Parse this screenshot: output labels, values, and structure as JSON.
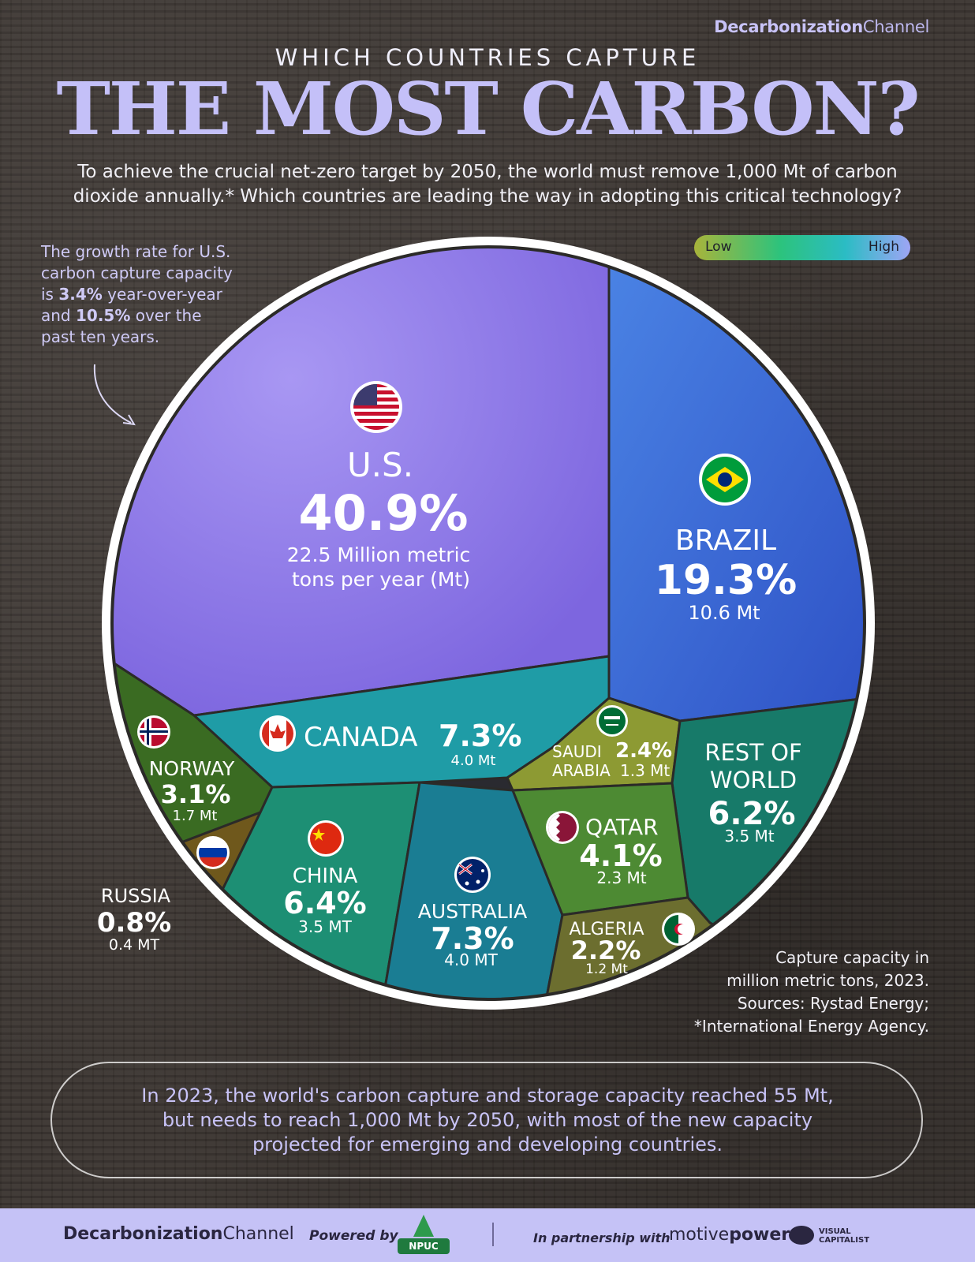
{
  "header": {
    "brand_bold": "Decarbonization",
    "brand_light": "Channel",
    "kicker": "WHICH COUNTRIES CAPTURE",
    "title": "THE MOST CARBON?",
    "intro_line1": "To achieve the crucial net-zero target by 2050, the world must remove 1,000 Mt of carbon",
    "intro_line2": "dioxide annually.* Which countries are leading the way in adopting this critical technology?"
  },
  "note": {
    "line1": "The growth rate for U.S.",
    "line2": "carbon capture capacity",
    "line3_pre": "is ",
    "line3_val": "3.4%",
    "line3_post": " year-over-year",
    "line4_pre": "and ",
    "line4_val": "10.5%",
    "line4_post": " over the",
    "line5": "past ten years."
  },
  "legend": {
    "low": "Low",
    "high": "High"
  },
  "chart_data": {
    "type": "pie",
    "subtype": "voronoi treemap",
    "unit": "Mt",
    "categories": [
      "U.S.",
      "Brazil",
      "Canada",
      "Australia",
      "China",
      "Rest of World",
      "Qatar",
      "Norway",
      "Saudi Arabia",
      "Algeria",
      "Russia"
    ],
    "percent": [
      40.9,
      19.3,
      7.3,
      7.3,
      6.4,
      6.2,
      4.1,
      3.1,
      2.4,
      2.2,
      0.8
    ],
    "values": [
      22.5,
      10.6,
      4.0,
      4.0,
      3.5,
      3.5,
      2.3,
      1.7,
      1.3,
      1.2,
      0.4
    ],
    "colors": [
      "#9a86ec",
      "#3f6fda",
      "#1f9da6",
      "#1b7e93",
      "#1f8f74",
      "#1a7a66",
      "#4f8a33",
      "#3b6e22",
      "#8a9631",
      "#6e7030",
      "#6f5a1c"
    ]
  },
  "labels": {
    "us_name": "U.S.",
    "us_pct": "40.9%",
    "us_val1": "22.5 Million metric",
    "us_val2": "tons per year (Mt)",
    "brazil_name": "BRAZIL",
    "brazil_pct": "19.3%",
    "brazil_val": "10.6 Mt",
    "canada_name": "CANADA",
    "canada_pct": "7.3%",
    "canada_val": "4.0 Mt",
    "saudi_name1": "SAUDI",
    "saudi_name2": "ARABIA",
    "saudi_pct": "2.4%",
    "saudi_val": "1.3 Mt",
    "row_name1": "REST OF",
    "row_name2": "WORLD",
    "row_pct": "6.2%",
    "row_val": "3.5 Mt",
    "norway_name": "NORWAY",
    "norway_pct": "3.1%",
    "norway_val": "1.7 Mt",
    "qatar_name": "QATAR",
    "qatar_pct": "4.1%",
    "qatar_val": "2.3 Mt",
    "china_name": "CHINA",
    "china_pct": "6.4%",
    "china_val": "3.5 MT",
    "australia_name": "AUSTRALIA",
    "australia_pct": "7.3%",
    "australia_val": "4.0 MT",
    "algeria_name": "ALGERIA",
    "algeria_pct": "2.2%",
    "algeria_val": "1.2 Mt",
    "russia_name": "RUSSIA",
    "russia_pct": "0.8%",
    "russia_val": "0.4 MT"
  },
  "source": {
    "line1": "Capture capacity in",
    "line2": "million metric tons, 2023.",
    "line3": "Sources: Rystad Energy;",
    "line4": "*International Energy Agency."
  },
  "footer": {
    "line1": "In 2023, the world's carbon capture and storage capacity reached 55 Mt,",
    "line2": "but needs to reach 1,000 Mt by 2050, with most of the new capacity",
    "line3": "projected for emerging and developing countries."
  },
  "bottom_bar": {
    "brand_bold": "Decarbonization",
    "brand_light": "Channel",
    "powered_by": "Powered by",
    "npuc": "NPUC",
    "partnership": "In partnership with",
    "motive_light": "motive",
    "motive_bold": "power",
    "vc_line1": "VISUAL",
    "vc_line2": "CAPITALIST"
  }
}
